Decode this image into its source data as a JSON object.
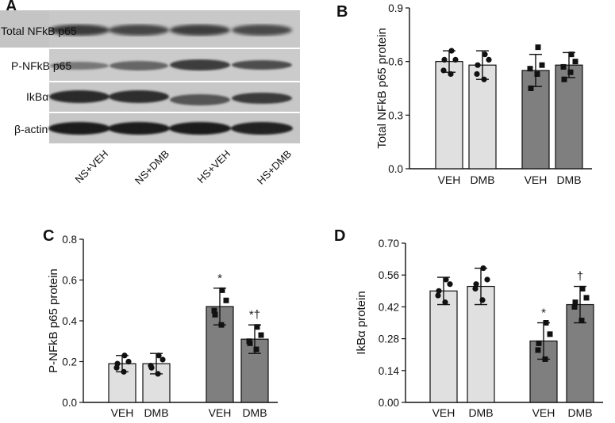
{
  "panels": {
    "a": "A",
    "b": "B",
    "c": "C",
    "d": "D"
  },
  "blot": {
    "row_labels": [
      "Total NFkB p65",
      "P-NFkB p65",
      "IkBα",
      "β-actin"
    ],
    "lane_labels": [
      "NS+VEH",
      "NS+DMB",
      "HS+VEH",
      "HS+DMB"
    ]
  },
  "colors": {
    "ns_bar": "#e0e0e0",
    "hs_bar": "#7f7f7f",
    "axis": "#111111"
  },
  "chart_data": [
    {
      "type": "bar",
      "panel": "B",
      "ylabel": "Total NFkB p65 protein",
      "categories": [
        "VEH",
        "DMB",
        "VEH",
        "DMB"
      ],
      "groups": [
        "NS",
        "NS",
        "HS",
        "HS"
      ],
      "values": [
        0.6,
        0.58,
        0.55,
        0.58
      ],
      "errors": [
        0.06,
        0.08,
        0.09,
        0.07
      ],
      "points": [
        [
          0.66,
          0.61,
          0.55,
          0.53,
          0.61
        ],
        [
          0.64,
          0.61,
          0.53,
          0.5,
          0.58
        ],
        [
          0.68,
          0.58,
          0.56,
          0.53,
          0.45
        ],
        [
          0.64,
          0.6,
          0.57,
          0.54,
          0.5
        ]
      ],
      "point_marker": [
        "circle",
        "circle",
        "square",
        "square"
      ],
      "annotations": [
        "",
        "",
        "",
        ""
      ],
      "yticks": [
        "0.0",
        "0.3",
        "0.6",
        "0.9"
      ],
      "ylim": [
        0,
        0.9
      ]
    },
    {
      "type": "bar",
      "panel": "C",
      "ylabel": "P-NFkB p65 protein",
      "categories": [
        "VEH",
        "DMB",
        "VEH",
        "DMB"
      ],
      "groups": [
        "NS",
        "NS",
        "HS",
        "HS"
      ],
      "values": [
        0.19,
        0.19,
        0.47,
        0.31
      ],
      "errors": [
        0.04,
        0.05,
        0.09,
        0.07
      ],
      "points": [
        [
          0.23,
          0.2,
          0.17,
          0.15,
          0.19
        ],
        [
          0.23,
          0.21,
          0.18,
          0.14,
          0.17
        ],
        [
          0.55,
          0.5,
          0.45,
          0.38,
          0.43
        ],
        [
          0.37,
          0.33,
          0.3,
          0.26,
          0.29
        ]
      ],
      "point_marker": [
        "circle",
        "circle",
        "square",
        "square"
      ],
      "annotations": [
        "",
        "",
        "*",
        "*†"
      ],
      "yticks": [
        "0.0",
        "0.2",
        "0.4",
        "0.6",
        "0.8"
      ],
      "ylim": [
        0,
        0.8
      ]
    },
    {
      "type": "bar",
      "panel": "D",
      "ylabel": "IkBα protein",
      "categories": [
        "VEH",
        "DMB",
        "VEH",
        "DMB"
      ],
      "groups": [
        "NS",
        "NS",
        "HS",
        "HS"
      ],
      "values": [
        0.49,
        0.51,
        0.27,
        0.43
      ],
      "errors": [
        0.06,
        0.08,
        0.08,
        0.08
      ],
      "points": [
        [
          0.54,
          0.52,
          0.47,
          0.44,
          0.49
        ],
        [
          0.59,
          0.54,
          0.5,
          0.45,
          0.52
        ],
        [
          0.35,
          0.3,
          0.23,
          0.19,
          0.26
        ],
        [
          0.5,
          0.46,
          0.42,
          0.36,
          0.44
        ]
      ],
      "point_marker": [
        "circle",
        "circle",
        "square",
        "square"
      ],
      "annotations": [
        "",
        "",
        "*",
        "†"
      ],
      "yticks": [
        "0.00",
        "0.14",
        "0.28",
        "0.42",
        "0.56",
        "0.70"
      ],
      "ylim": [
        0,
        0.7
      ]
    }
  ]
}
